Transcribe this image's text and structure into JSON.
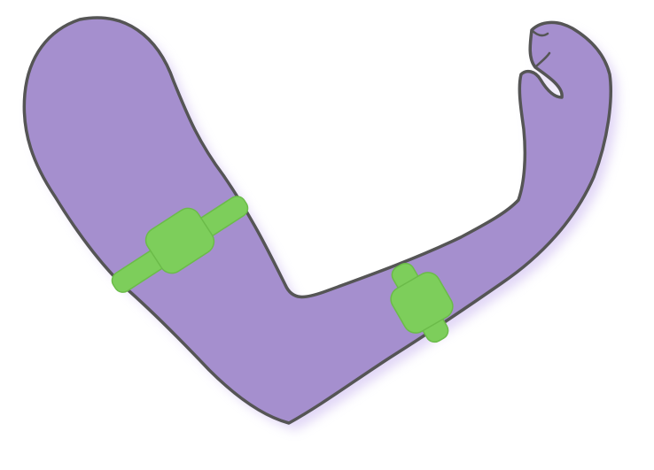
{
  "illustration": {
    "subject": "arm",
    "sensor_count": 2
  },
  "colors": {
    "background": "#ffffff",
    "arm_fill": "#a58fce",
    "arm_outline": "#555555",
    "arm_glow": "#c9b6ef",
    "sensor_fill": "#7dce5b",
    "sensor_outline": "#6bbb49"
  },
  "icons": {
    "arm": "arm-silhouette",
    "upper_sensor": "armband-sensor",
    "forearm_sensor": "armband-sensor"
  }
}
